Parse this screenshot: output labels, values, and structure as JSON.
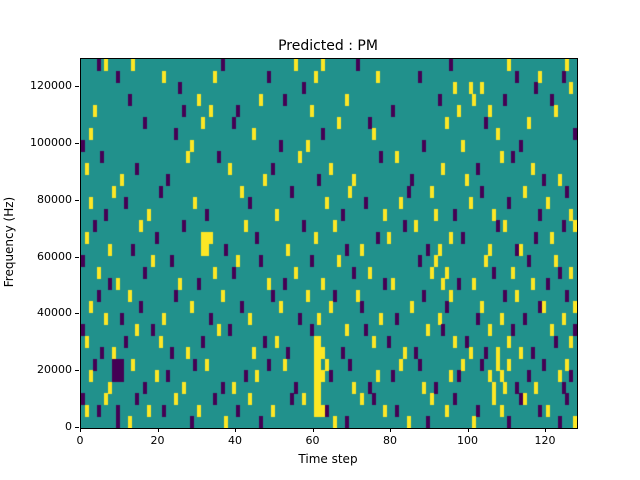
{
  "chart_data": {
    "type": "heatmap",
    "title": "Predicted : PM",
    "xlabel": "Time step",
    "ylabel": "Frequency (Hz)",
    "x_range": [
      0,
      128
    ],
    "y_range": [
      0,
      130000
    ],
    "x_ticks": [
      0,
      20,
      40,
      60,
      80,
      100,
      120
    ],
    "y_ticks": [
      0,
      20000,
      40000,
      60000,
      80000,
      100000,
      120000
    ],
    "grid": {
      "cols": 128,
      "rows": 32
    },
    "legend": "none",
    "colors": {
      "background": "#21918c",
      "high": "#fde725",
      "low": "#440154",
      "figure_bg": "#ffffff",
      "axis": "#000000"
    },
    "value_legend": {
      "0": "background",
      "1": "high (yellow)",
      "-1": "low (purple)"
    },
    "cells_high": [
      [
        6,
        31
      ],
      [
        13,
        31
      ],
      [
        21,
        30
      ],
      [
        34,
        30
      ],
      [
        55,
        31
      ],
      [
        60,
        30
      ],
      [
        62,
        31
      ],
      [
        76,
        30
      ],
      [
        96,
        29
      ],
      [
        100,
        29
      ],
      [
        103,
        29
      ],
      [
        110,
        31
      ],
      [
        118,
        30
      ],
      [
        125,
        31
      ],
      [
        126,
        29
      ],
      [
        3,
        27
      ],
      [
        30,
        28
      ],
      [
        33,
        27
      ],
      [
        46,
        28
      ],
      [
        59,
        27
      ],
      [
        68,
        28
      ],
      [
        97,
        27
      ],
      [
        101,
        28
      ],
      [
        105,
        27
      ],
      [
        122,
        27
      ],
      [
        2,
        25
      ],
      [
        28,
        24
      ],
      [
        31,
        26
      ],
      [
        44,
        25
      ],
      [
        58,
        24
      ],
      [
        66,
        26
      ],
      [
        75,
        25
      ],
      [
        94,
        26
      ],
      [
        98,
        24
      ],
      [
        107,
        25
      ],
      [
        115,
        26
      ],
      [
        1,
        22
      ],
      [
        10,
        21
      ],
      [
        27,
        23
      ],
      [
        38,
        22
      ],
      [
        47,
        21
      ],
      [
        56,
        23
      ],
      [
        64,
        22
      ],
      [
        70,
        21
      ],
      [
        81,
        23
      ],
      [
        93,
        22
      ],
      [
        99,
        21
      ],
      [
        108,
        23
      ],
      [
        116,
        22
      ],
      [
        123,
        21
      ],
      [
        2,
        19
      ],
      [
        8,
        20
      ],
      [
        17,
        18
      ],
      [
        29,
        19
      ],
      [
        41,
        20
      ],
      [
        50,
        18
      ],
      [
        63,
        19
      ],
      [
        69,
        20
      ],
      [
        78,
        18
      ],
      [
        82,
        19
      ],
      [
        90,
        20
      ],
      [
        91,
        18
      ],
      [
        100,
        19
      ],
      [
        106,
        18
      ],
      [
        114,
        20
      ],
      [
        120,
        19
      ],
      [
        126,
        18
      ],
      [
        1,
        16
      ],
      [
        7,
        15
      ],
      [
        15,
        17
      ],
      [
        31,
        15
      ],
      [
        31,
        16
      ],
      [
        32,
        15
      ],
      [
        32,
        16
      ],
      [
        33,
        16
      ],
      [
        42,
        17
      ],
      [
        53,
        15
      ],
      [
        60,
        16
      ],
      [
        65,
        17
      ],
      [
        72,
        15
      ],
      [
        79,
        16
      ],
      [
        86,
        17
      ],
      [
        92,
        15
      ],
      [
        95,
        16
      ],
      [
        105,
        15
      ],
      [
        109,
        17
      ],
      [
        113,
        15
      ],
      [
        121,
        16
      ],
      [
        127,
        17
      ],
      [
        4,
        13
      ],
      [
        9,
        12
      ],
      [
        18,
        14
      ],
      [
        25,
        12
      ],
      [
        34,
        13
      ],
      [
        40,
        14
      ],
      [
        48,
        12
      ],
      [
        55,
        13
      ],
      [
        62,
        12
      ],
      [
        66,
        14
      ],
      [
        74,
        13
      ],
      [
        80,
        12
      ],
      [
        90,
        13
      ],
      [
        91,
        14
      ],
      [
        93,
        12
      ],
      [
        94,
        13
      ],
      [
        101,
        12
      ],
      [
        104,
        14
      ],
      [
        111,
        13
      ],
      [
        116,
        12
      ],
      [
        122,
        14
      ],
      [
        126,
        13
      ],
      [
        2,
        10
      ],
      [
        6,
        9
      ],
      [
        12,
        11
      ],
      [
        21,
        9
      ],
      [
        28,
        10
      ],
      [
        36,
        11
      ],
      [
        43,
        9
      ],
      [
        51,
        10
      ],
      [
        58,
        11
      ],
      [
        61,
        9
      ],
      [
        64,
        10
      ],
      [
        71,
        11
      ],
      [
        77,
        9
      ],
      [
        85,
        10
      ],
      [
        92,
        9
      ],
      [
        95,
        11
      ],
      [
        103,
        10
      ],
      [
        108,
        9
      ],
      [
        112,
        11
      ],
      [
        119,
        10
      ],
      [
        124,
        9
      ],
      [
        127,
        10
      ],
      [
        1,
        7
      ],
      [
        8,
        6
      ],
      [
        14,
        8
      ],
      [
        20,
        7
      ],
      [
        27,
        6
      ],
      [
        35,
        8
      ],
      [
        44,
        6
      ],
      [
        50,
        7
      ],
      [
        60,
        6
      ],
      [
        60,
        7
      ],
      [
        61,
        6
      ],
      [
        61,
        7
      ],
      [
        62,
        6
      ],
      [
        68,
        8
      ],
      [
        75,
        7
      ],
      [
        83,
        6
      ],
      [
        89,
        8
      ],
      [
        96,
        7
      ],
      [
        100,
        6
      ],
      [
        105,
        8
      ],
      [
        107,
        6
      ],
      [
        110,
        7
      ],
      [
        113,
        6
      ],
      [
        121,
        8
      ],
      [
        126,
        7
      ],
      [
        2,
        4
      ],
      [
        7,
        3
      ],
      [
        13,
        5
      ],
      [
        19,
        4
      ],
      [
        26,
        3
      ],
      [
        32,
        5
      ],
      [
        39,
        3
      ],
      [
        45,
        4
      ],
      [
        52,
        5
      ],
      [
        60,
        3
      ],
      [
        60,
        4
      ],
      [
        60,
        5
      ],
      [
        61,
        3
      ],
      [
        61,
        4
      ],
      [
        61,
        5
      ],
      [
        62,
        4
      ],
      [
        63,
        5
      ],
      [
        70,
        3
      ],
      [
        76,
        4
      ],
      [
        82,
        5
      ],
      [
        88,
        3
      ],
      [
        95,
        4
      ],
      [
        98,
        5
      ],
      [
        105,
        4
      ],
      [
        106,
        3
      ],
      [
        107,
        5
      ],
      [
        108,
        4
      ],
      [
        109,
        3
      ],
      [
        110,
        5
      ],
      [
        117,
        3
      ],
      [
        123,
        4
      ],
      [
        125,
        5
      ],
      [
        1,
        1
      ],
      [
        6,
        2
      ],
      [
        12,
        0
      ],
      [
        17,
        1
      ],
      [
        24,
        2
      ],
      [
        30,
        1
      ],
      [
        37,
        0
      ],
      [
        43,
        2
      ],
      [
        49,
        1
      ],
      [
        57,
        2
      ],
      [
        60,
        1
      ],
      [
        60,
        2
      ],
      [
        61,
        1
      ],
      [
        61,
        2
      ],
      [
        62,
        1
      ],
      [
        65,
        0
      ],
      [
        72,
        2
      ],
      [
        78,
        1
      ],
      [
        84,
        0
      ],
      [
        90,
        2
      ],
      [
        94,
        1
      ],
      [
        101,
        0
      ],
      [
        106,
        2
      ],
      [
        108,
        1
      ],
      [
        114,
        2
      ],
      [
        120,
        1
      ],
      [
        127,
        0
      ]
    ],
    "cells_low": [
      [
        4,
        31
      ],
      [
        9,
        30
      ],
      [
        25,
        29
      ],
      [
        36,
        31
      ],
      [
        48,
        30
      ],
      [
        57,
        29
      ],
      [
        71,
        31
      ],
      [
        87,
        30
      ],
      [
        95,
        31
      ],
      [
        112,
        30
      ],
      [
        117,
        29
      ],
      [
        124,
        30
      ],
      [
        12,
        28
      ],
      [
        26,
        27
      ],
      [
        40,
        27
      ],
      [
        52,
        28
      ],
      [
        80,
        27
      ],
      [
        92,
        28
      ],
      [
        109,
        28
      ],
      [
        121,
        28
      ],
      [
        0,
        24
      ],
      [
        16,
        26
      ],
      [
        24,
        25
      ],
      [
        39,
        26
      ],
      [
        51,
        24
      ],
      [
        62,
        25
      ],
      [
        74,
        26
      ],
      [
        88,
        24
      ],
      [
        104,
        26
      ],
      [
        113,
        24
      ],
      [
        127,
        25
      ],
      [
        5,
        23
      ],
      [
        14,
        22
      ],
      [
        22,
        21
      ],
      [
        35,
        23
      ],
      [
        49,
        22
      ],
      [
        61,
        21
      ],
      [
        77,
        23
      ],
      [
        85,
        21
      ],
      [
        102,
        22
      ],
      [
        111,
        23
      ],
      [
        119,
        21
      ],
      [
        6,
        18
      ],
      [
        11,
        19
      ],
      [
        20,
        20
      ],
      [
        32,
        18
      ],
      [
        43,
        19
      ],
      [
        54,
        20
      ],
      [
        67,
        18
      ],
      [
        73,
        19
      ],
      [
        84,
        20
      ],
      [
        96,
        18
      ],
      [
        103,
        20
      ],
      [
        110,
        19
      ],
      [
        118,
        18
      ],
      [
        125,
        20
      ],
      [
        3,
        17
      ],
      [
        13,
        15
      ],
      [
        19,
        16
      ],
      [
        26,
        17
      ],
      [
        37,
        15
      ],
      [
        45,
        16
      ],
      [
        57,
        17
      ],
      [
        68,
        15
      ],
      [
        76,
        16
      ],
      [
        83,
        17
      ],
      [
        89,
        15
      ],
      [
        98,
        16
      ],
      [
        107,
        17
      ],
      [
        112,
        15
      ],
      [
        117,
        16
      ],
      [
        124,
        17
      ],
      [
        0,
        14
      ],
      [
        7,
        12
      ],
      [
        16,
        13
      ],
      [
        23,
        14
      ],
      [
        30,
        12
      ],
      [
        39,
        13
      ],
      [
        46,
        14
      ],
      [
        52,
        12
      ],
      [
        59,
        14
      ],
      [
        70,
        13
      ],
      [
        78,
        12
      ],
      [
        87,
        14
      ],
      [
        97,
        12
      ],
      [
        106,
        13
      ],
      [
        115,
        14
      ],
      [
        120,
        12
      ],
      [
        123,
        13
      ],
      [
        4,
        11
      ],
      [
        10,
        9
      ],
      [
        15,
        10
      ],
      [
        24,
        11
      ],
      [
        33,
        9
      ],
      [
        41,
        10
      ],
      [
        49,
        11
      ],
      [
        56,
        9
      ],
      [
        65,
        11
      ],
      [
        72,
        10
      ],
      [
        81,
        9
      ],
      [
        88,
        11
      ],
      [
        94,
        10
      ],
      [
        102,
        9
      ],
      [
        109,
        11
      ],
      [
        114,
        9
      ],
      [
        118,
        10
      ],
      [
        125,
        11
      ],
      [
        0,
        8
      ],
      [
        5,
        6
      ],
      [
        11,
        7
      ],
      [
        18,
        8
      ],
      [
        23,
        6
      ],
      [
        31,
        7
      ],
      [
        38,
        8
      ],
      [
        47,
        7
      ],
      [
        53,
        6
      ],
      [
        59,
        8
      ],
      [
        67,
        6
      ],
      [
        73,
        8
      ],
      [
        79,
        7
      ],
      [
        86,
        6
      ],
      [
        93,
        8
      ],
      [
        99,
        7
      ],
      [
        104,
        6
      ],
      [
        111,
        8
      ],
      [
        116,
        6
      ],
      [
        122,
        7
      ],
      [
        127,
        8
      ],
      [
        3,
        5
      ],
      [
        8,
        4
      ],
      [
        8,
        5
      ],
      [
        9,
        4
      ],
      [
        9,
        5
      ],
      [
        10,
        4
      ],
      [
        10,
        5
      ],
      [
        16,
        3
      ],
      [
        22,
        4
      ],
      [
        29,
        5
      ],
      [
        36,
        3
      ],
      [
        42,
        4
      ],
      [
        48,
        5
      ],
      [
        55,
        3
      ],
      [
        64,
        4
      ],
      [
        69,
        5
      ],
      [
        74,
        3
      ],
      [
        80,
        4
      ],
      [
        87,
        5
      ],
      [
        91,
        3
      ],
      [
        97,
        4
      ],
      [
        103,
        5
      ],
      [
        112,
        3
      ],
      [
        115,
        4
      ],
      [
        119,
        5
      ],
      [
        124,
        3
      ],
      [
        126,
        4
      ],
      [
        0,
        2
      ],
      [
        4,
        1
      ],
      [
        9,
        0
      ],
      [
        9,
        1
      ],
      [
        14,
        2
      ],
      [
        21,
        1
      ],
      [
        28,
        0
      ],
      [
        34,
        2
      ],
      [
        40,
        1
      ],
      [
        46,
        0
      ],
      [
        54,
        2
      ],
      [
        63,
        1
      ],
      [
        68,
        0
      ],
      [
        75,
        2
      ],
      [
        81,
        1
      ],
      [
        89,
        0
      ],
      [
        96,
        2
      ],
      [
        102,
        1
      ],
      [
        110,
        0
      ],
      [
        113,
        2
      ],
      [
        118,
        1
      ],
      [
        123,
        0
      ],
      [
        125,
        2
      ]
    ]
  }
}
